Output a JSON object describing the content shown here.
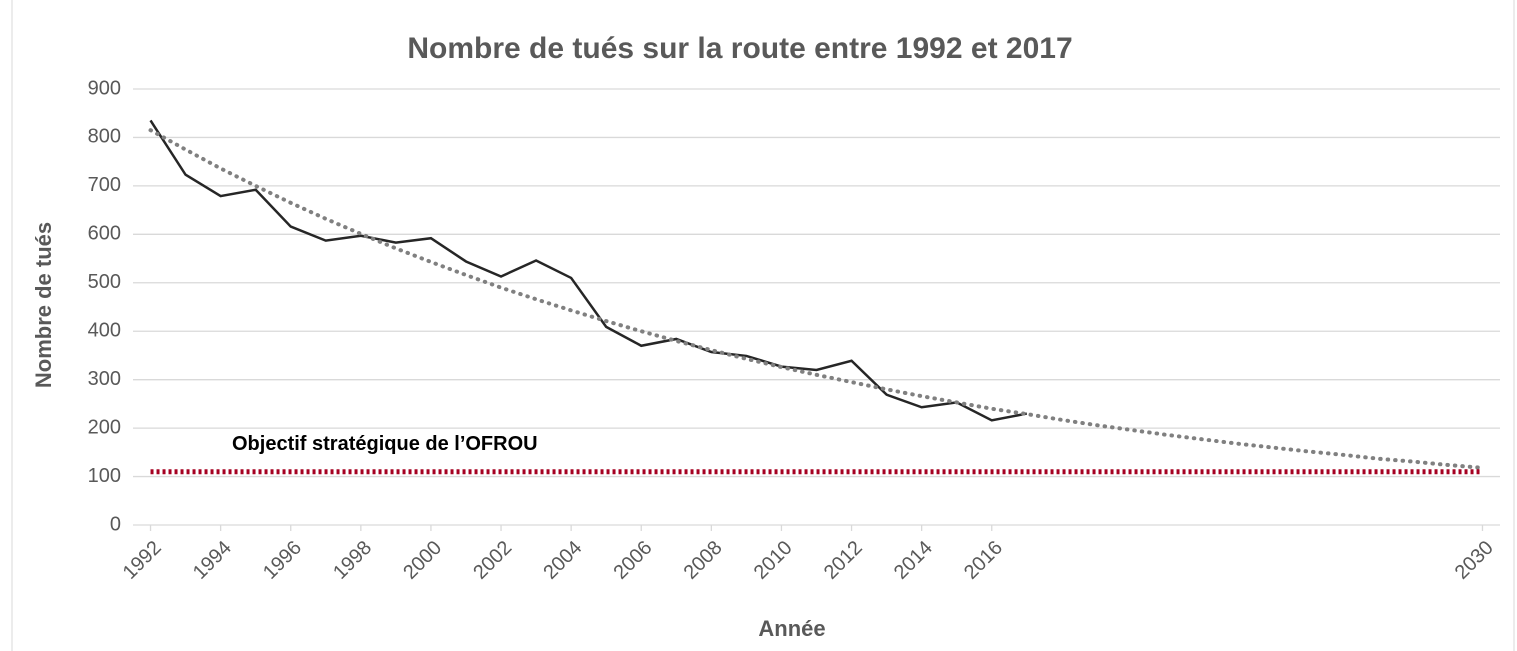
{
  "chart_data": {
    "type": "line",
    "title": "Nombre de tués sur la route entre 1992 et 2017",
    "x_label": "Année",
    "y_label": "Nombre de tués",
    "x": [
      1992,
      1993,
      1994,
      1995,
      1996,
      1997,
      1998,
      1999,
      2000,
      2001,
      2002,
      2003,
      2004,
      2005,
      2006,
      2007,
      2008,
      2009,
      2010,
      2011,
      2012,
      2013,
      2014,
      2015,
      2016,
      2017,
      2018,
      2019,
      2020,
      2021,
      2022,
      2023,
      2024,
      2025,
      2026,
      2027,
      2028,
      2029,
      2030
    ],
    "series": [
      {
        "color": "#262626",
        "style": "solid",
        "values": [
          835,
          723,
          679,
          692,
          616,
          587,
          597,
          583,
          592,
          544,
          513,
          546,
          510,
          409,
          370,
          384,
          357,
          349,
          327,
          320,
          339,
          269,
          243,
          253,
          216,
          230,
          null,
          null,
          null,
          null,
          null,
          null,
          null,
          null,
          null,
          null,
          null,
          null,
          null
        ]
      },
      {
        "color": "#808080",
        "style": "dotted",
        "values": [
          815,
          775,
          736,
          700,
          665,
          632,
          601,
          571,
          543,
          516,
          490,
          466,
          443,
          421,
          400,
          380,
          361,
          343,
          326,
          310,
          295,
          280,
          266,
          253,
          240,
          229,
          217,
          206,
          196,
          186,
          177,
          168,
          160,
          152,
          145,
          137,
          131,
          124,
          118
        ]
      },
      {
        "name": "Objectif stratégique de l’OFROU",
        "color": "#a50021",
        "style": "dotted",
        "x": [
          1992,
          2030
        ],
        "values": [
          110,
          110
        ]
      }
    ],
    "xlim": [
      1991.5,
      2030.5
    ],
    "xticks": [
      1992,
      1994,
      1996,
      1998,
      2000,
      2002,
      2004,
      2006,
      2008,
      2010,
      2012,
      2014,
      2016,
      2030
    ],
    "ylim": [
      0,
      900
    ],
    "yticks": [
      0,
      100,
      200,
      300,
      400,
      500,
      600,
      700,
      800,
      900
    ],
    "grid": true
  }
}
